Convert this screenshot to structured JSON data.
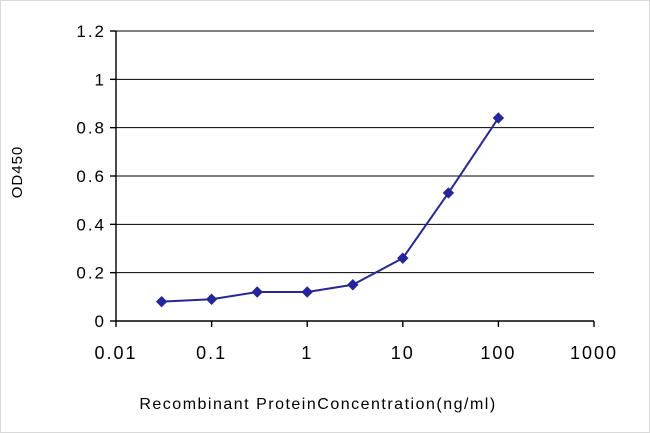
{
  "chart_data": {
    "type": "line",
    "title": "",
    "xlabel": "Recombinant ProteinConcentration(ng/ml)",
    "ylabel": "OD450",
    "xscale": "log",
    "xlim": [
      0.01,
      1000
    ],
    "ylim": [
      0,
      1.2
    ],
    "grid": "horizontal",
    "legend": "none",
    "line_color": "#26269b",
    "marker": "diamond",
    "axis_color": "#000000",
    "xticks": {
      "values": [
        0.01,
        0.1,
        1,
        10,
        100,
        1000
      ],
      "labels": [
        "0.01",
        "0.1",
        "1",
        "10",
        "100",
        "1000"
      ]
    },
    "yticks": {
      "values": [
        0,
        0.2,
        0.4,
        0.6,
        0.8,
        1,
        1.2
      ],
      "labels": [
        "0",
        "0.2",
        "0.4",
        "0.6",
        "0.8",
        "1",
        "1.2"
      ]
    },
    "series": [
      {
        "name": "OD450",
        "color": "#26269b",
        "x": [
          0.03,
          0.1,
          0.3,
          1,
          3,
          10,
          30,
          100
        ],
        "y": [
          0.08,
          0.09,
          0.12,
          0.12,
          0.15,
          0.26,
          0.53,
          0.84
        ]
      }
    ]
  }
}
